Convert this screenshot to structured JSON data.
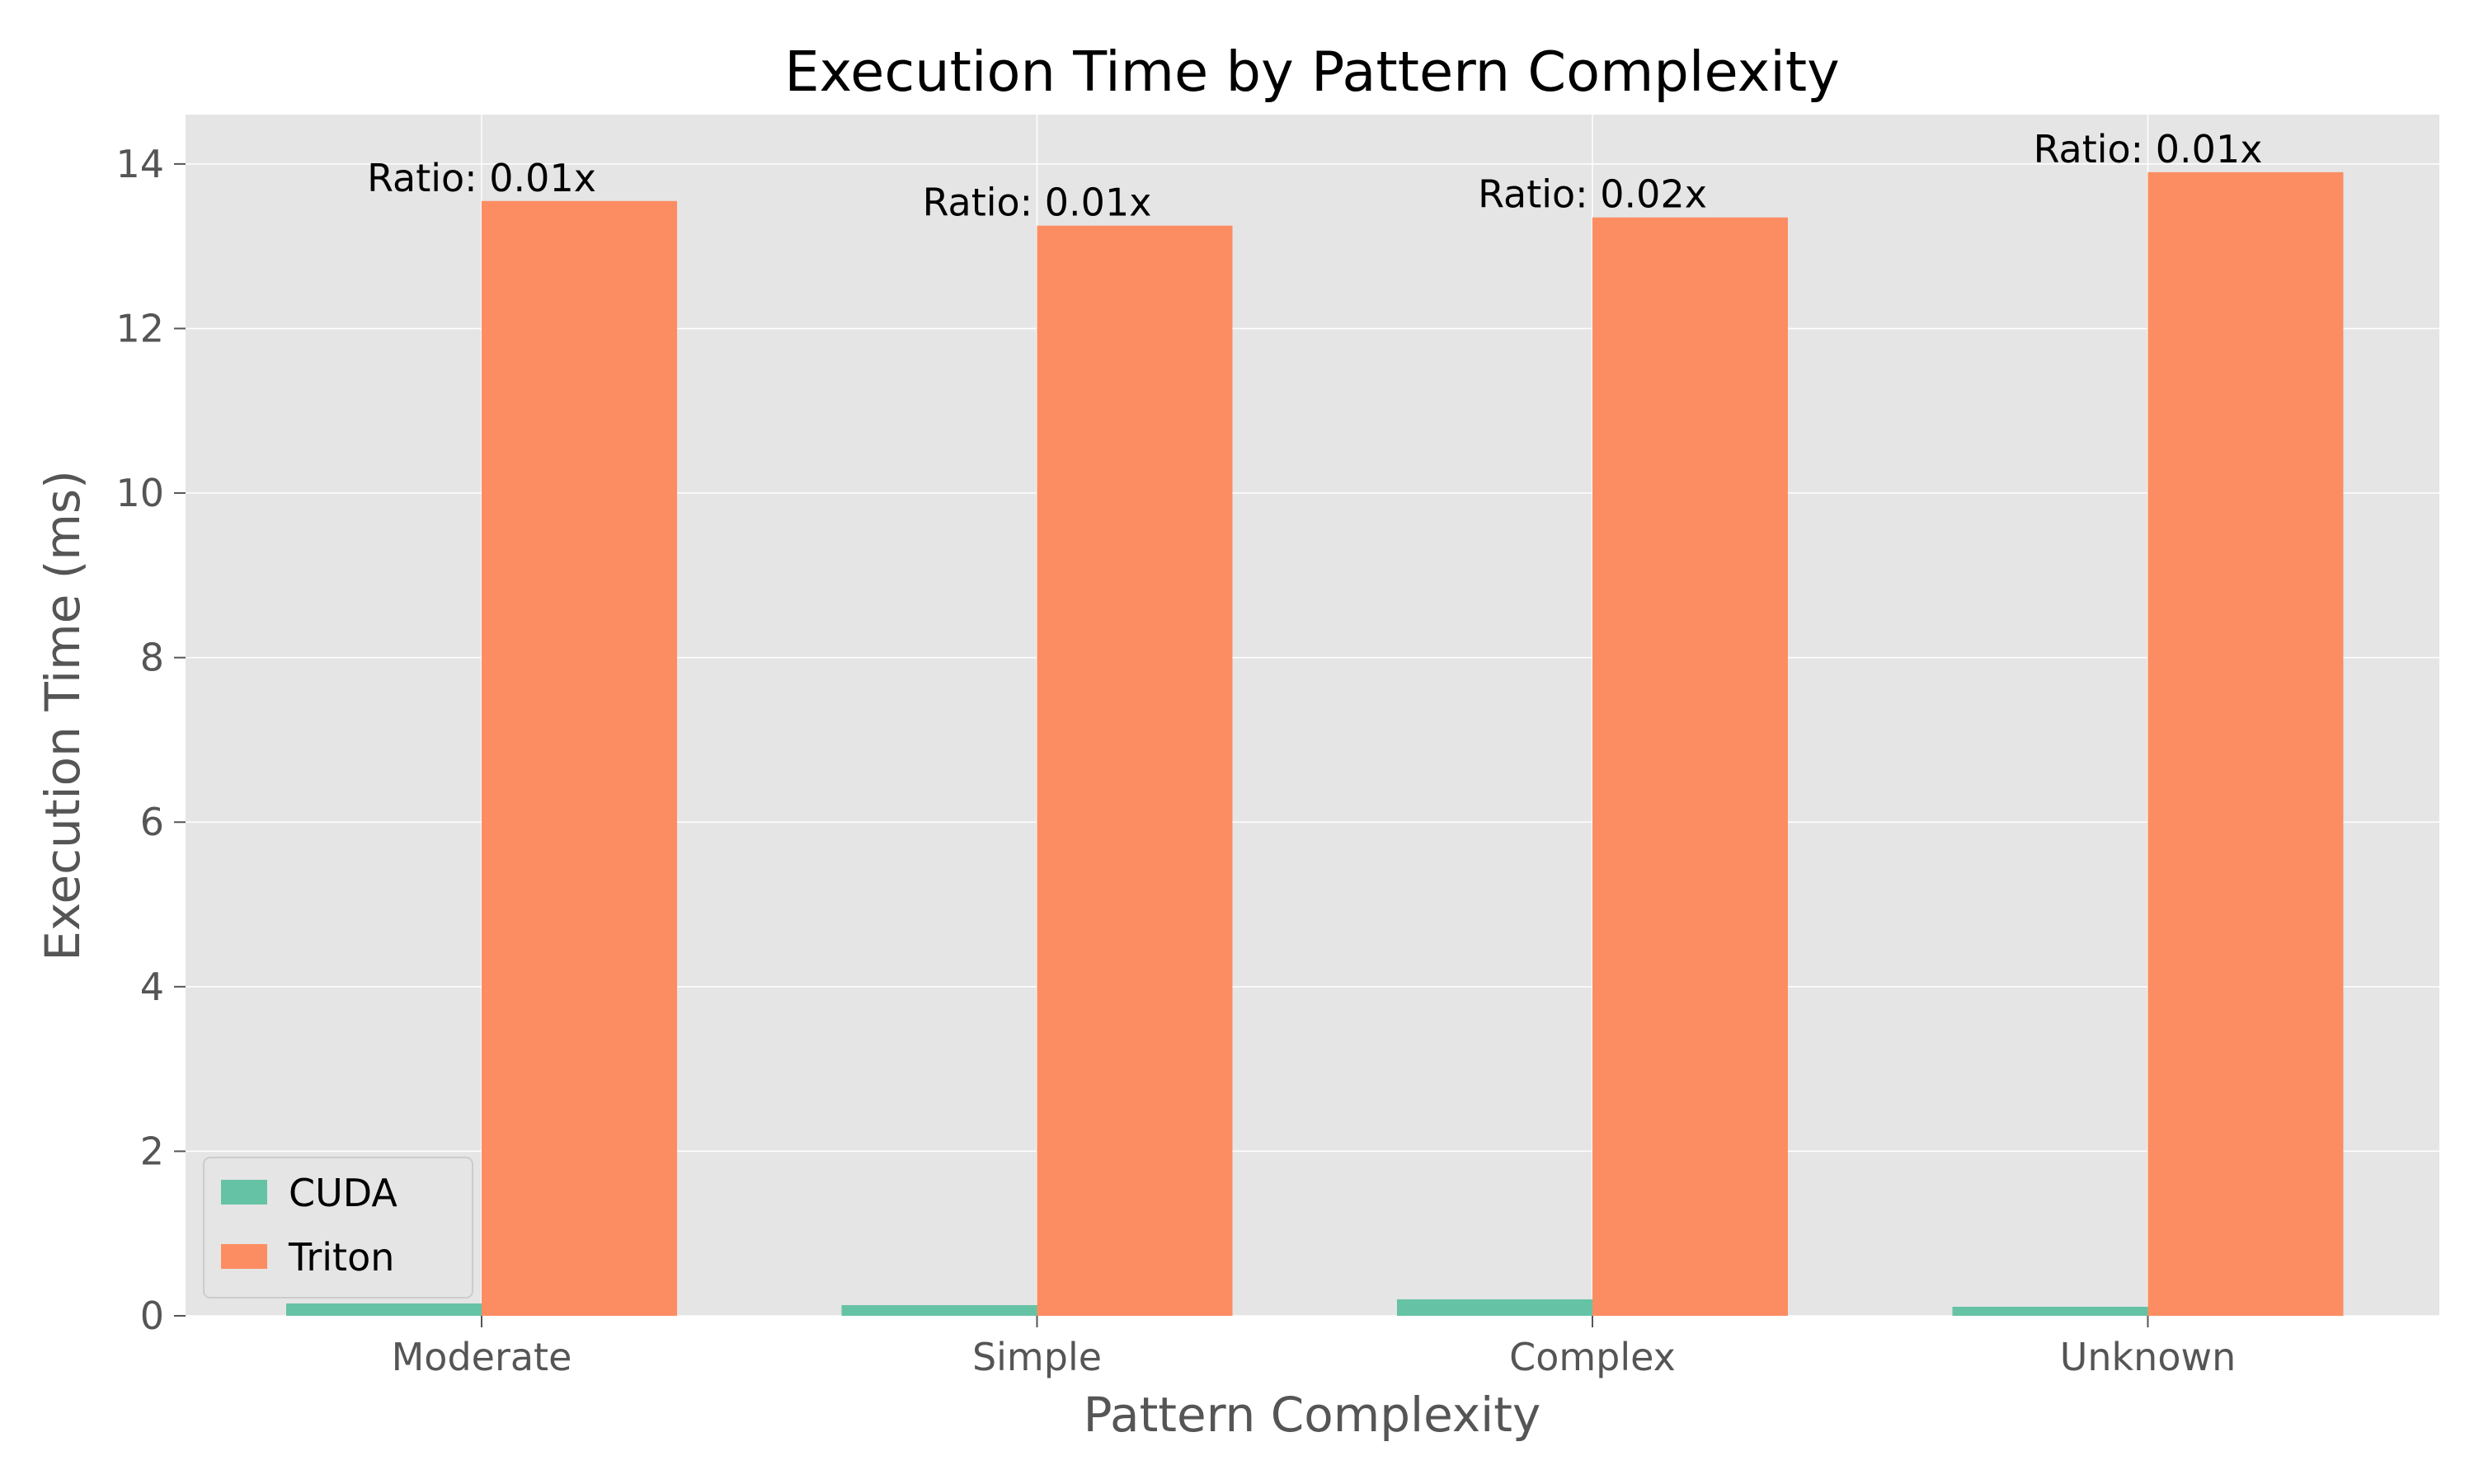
{
  "chart_data": {
    "type": "bar",
    "title": "Execution Time by Pattern Complexity",
    "xlabel": "Pattern Complexity",
    "ylabel": "Execution Time (ms)",
    "categories": [
      "Moderate",
      "Simple",
      "Complex",
      "Unknown"
    ],
    "series": [
      {
        "name": "CUDA",
        "color": "#66c2a5",
        "values": [
          0.15,
          0.13,
          0.2,
          0.11
        ]
      },
      {
        "name": "Triton",
        "color": "#fc8d62",
        "values": [
          13.55,
          13.25,
          13.35,
          13.9
        ]
      }
    ],
    "annotations": [
      "Ratio: 0.01x",
      "Ratio: 0.01x",
      "Ratio: 0.02x",
      "Ratio: 0.01x"
    ],
    "yticks": [
      0,
      2,
      4,
      6,
      8,
      10,
      12,
      14
    ],
    "ylim": [
      0,
      14.6
    ],
    "grid": true,
    "legend_position": "lower-left",
    "background_color": "#e5e5e5",
    "grid_color": "#ffffff"
  }
}
